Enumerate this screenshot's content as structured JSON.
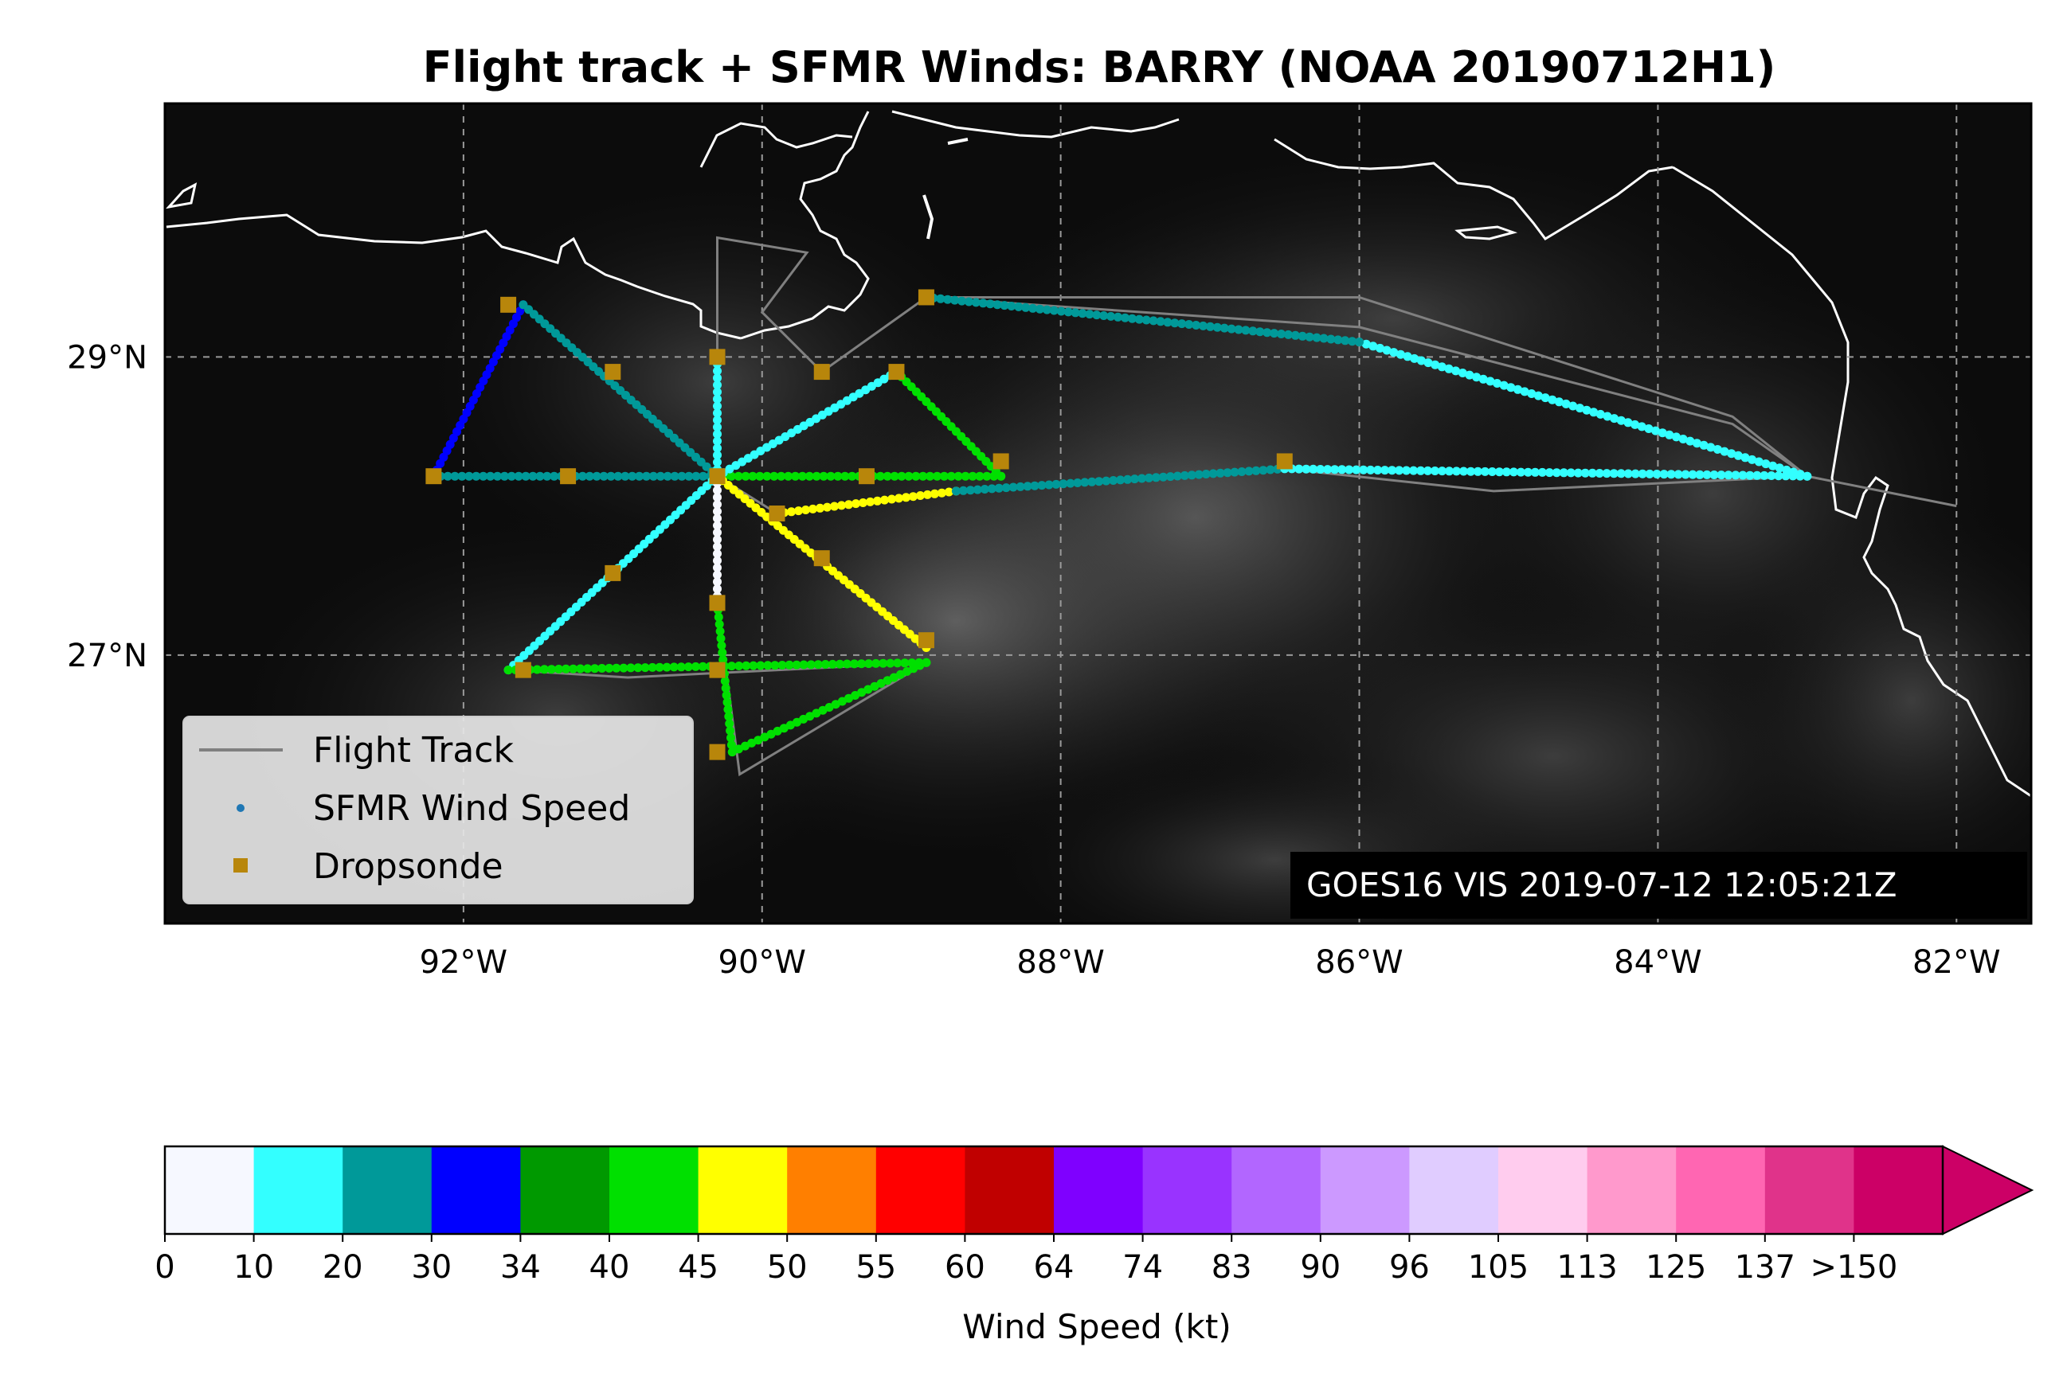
{
  "title": "Flight track + SFMR Winds: BARRY (NOAA 20190712H1)",
  "map": {
    "lon_range": [
      -94,
      -81.5
    ],
    "lat_range": [
      25.2,
      30.7
    ],
    "x_ticks": [
      {
        "lon": -92,
        "label": "92°W"
      },
      {
        "lon": -90,
        "label": "90°W"
      },
      {
        "lon": -88,
        "label": "88°W"
      },
      {
        "lon": -86,
        "label": "86°W"
      },
      {
        "lon": -84,
        "label": "84°W"
      },
      {
        "lon": -82,
        "label": "82°W"
      }
    ],
    "y_ticks": [
      {
        "lat": 29,
        "label": "29°N"
      },
      {
        "lat": 27,
        "label": "27°N"
      }
    ],
    "gridlines": true,
    "background": "GOES16 visible satellite imagery (grayscale)",
    "stamp": "GOES16 VIS 2019-07-12 12:05:21Z"
  },
  "legend": {
    "placement": "lower-left",
    "items": [
      {
        "label": "Flight Track",
        "marker": "line",
        "color": "#808080"
      },
      {
        "label": "SFMR Wind Speed",
        "marker": "dot",
        "color": "#1f77b4"
      },
      {
        "label": "Dropsonde",
        "marker": "square",
        "color": "#b8860b"
      }
    ]
  },
  "colorbar": {
    "label": "Wind Speed (kt)",
    "ticks": [
      "0",
      "10",
      "20",
      "30",
      "34",
      "40",
      "45",
      "50",
      "55",
      "60",
      "64",
      "74",
      "83",
      "90",
      "96",
      "105",
      "113",
      "125",
      "137",
      ">150"
    ],
    "colors": [
      "#f6f8ff",
      "#33ffff",
      "#009999",
      "#0000ff",
      "#009900",
      "#00e000",
      "#ffff00",
      "#ff7f00",
      "#ff0000",
      "#c00000",
      "#7f00ff",
      "#9933ff",
      "#b266ff",
      "#cc99ff",
      "#e0ccff",
      "#ffccee",
      "#ff99cc",
      "#ff66b2",
      "#e0338a",
      "#cc0066"
    ],
    "extend": "max"
  },
  "chart_data": {
    "type": "map-track",
    "flight_track": [
      [
        -82.0,
        28.0
      ],
      [
        -83.0,
        28.2
      ],
      [
        -83.5,
        28.6
      ],
      [
        -86.0,
        29.4
      ],
      [
        -88.9,
        29.4
      ],
      [
        -89.6,
        28.9
      ],
      [
        -90.0,
        29.3
      ],
      [
        -89.7,
        29.7
      ],
      [
        -90.3,
        29.8
      ],
      [
        -90.3,
        28.2
      ],
      [
        -91.6,
        29.35
      ],
      [
        -92.2,
        28.2
      ],
      [
        -88.4,
        28.2
      ],
      [
        -89.1,
        28.9
      ],
      [
        -90.3,
        28.2
      ],
      [
        -88.9,
        27.05
      ],
      [
        -90.3,
        28.2
      ],
      [
        -91.7,
        26.9
      ],
      [
        -90.9,
        26.85
      ],
      [
        -88.9,
        26.95
      ],
      [
        -90.15,
        26.2
      ],
      [
        -90.3,
        27.35
      ],
      [
        -90.3,
        28.2
      ],
      [
        -89.9,
        27.95
      ],
      [
        -88.7,
        28.1
      ],
      [
        -86.5,
        28.25
      ],
      [
        -85.1,
        28.1
      ],
      [
        -83.0,
        28.2
      ],
      [
        -83.5,
        28.55
      ],
      [
        -86.0,
        29.2
      ],
      [
        -88.9,
        29.4
      ]
    ],
    "sfmr_segments": [
      {
        "from": [
          -91.6,
          29.35
        ],
        "to": [
          -92.2,
          28.2
        ],
        "wind_kt": 30
      },
      {
        "from": [
          -92.2,
          28.2
        ],
        "to": [
          -90.3,
          28.2
        ],
        "wind_kt": 22
      },
      {
        "from": [
          -90.3,
          28.2
        ],
        "to": [
          -88.4,
          28.2
        ],
        "wind_kt": 40
      },
      {
        "from": [
          -88.4,
          28.2
        ],
        "to": [
          -89.1,
          28.9
        ],
        "wind_kt": 42
      },
      {
        "from": [
          -89.1,
          28.9
        ],
        "to": [
          -90.3,
          28.2
        ],
        "wind_kt": 12
      },
      {
        "from": [
          -91.6,
          29.35
        ],
        "to": [
          -90.3,
          28.2
        ],
        "wind_kt": 20
      },
      {
        "from": [
          -90.3,
          29.0
        ],
        "to": [
          -90.3,
          28.2
        ],
        "wind_kt": 12
      },
      {
        "from": [
          -90.3,
          28.2
        ],
        "to": [
          -91.7,
          26.9
        ],
        "wind_kt": 18
      },
      {
        "from": [
          -91.7,
          26.9
        ],
        "to": [
          -88.9,
          26.95
        ],
        "wind_kt": 40
      },
      {
        "from": [
          -90.3,
          28.2
        ],
        "to": [
          -90.3,
          27.35
        ],
        "wind_kt": 8
      },
      {
        "from": [
          -90.3,
          27.35
        ],
        "to": [
          -90.2,
          26.35
        ],
        "wind_kt": 42
      },
      {
        "from": [
          -90.2,
          26.35
        ],
        "to": [
          -88.9,
          26.95
        ],
        "wind_kt": 40
      },
      {
        "from": [
          -90.3,
          28.2
        ],
        "to": [
          -88.9,
          27.05
        ],
        "wind_kt": 46
      },
      {
        "from": [
          -89.9,
          27.95
        ],
        "to": [
          -88.7,
          28.1
        ],
        "wind_kt": 47
      },
      {
        "from": [
          -88.7,
          28.1
        ],
        "to": [
          -86.5,
          28.25
        ],
        "wind_kt": 25
      },
      {
        "from": [
          -86.5,
          28.25
        ],
        "to": [
          -83.0,
          28.2
        ],
        "wind_kt": 15
      },
      {
        "from": [
          -83.0,
          28.2
        ],
        "to": [
          -86.0,
          29.1
        ],
        "wind_kt": 12
      },
      {
        "from": [
          -86.0,
          29.1
        ],
        "to": [
          -88.9,
          29.4
        ],
        "wind_kt": 28
      }
    ],
    "dropsondes": [
      [
        -91.7,
        29.35
      ],
      [
        -92.2,
        28.2
      ],
      [
        -91.3,
        28.2
      ],
      [
        -90.3,
        28.2
      ],
      [
        -89.3,
        28.2
      ],
      [
        -91.0,
        28.9
      ],
      [
        -90.3,
        29.0
      ],
      [
        -89.6,
        28.9
      ],
      [
        -89.1,
        28.9
      ],
      [
        -88.9,
        29.4
      ],
      [
        -88.4,
        28.3
      ],
      [
        -86.5,
        28.3
      ],
      [
        -89.9,
        27.95
      ],
      [
        -89.6,
        27.65
      ],
      [
        -91.0,
        27.55
      ],
      [
        -90.3,
        27.35
      ],
      [
        -91.6,
        26.9
      ],
      [
        -90.3,
        26.9
      ],
      [
        -90.3,
        26.35
      ],
      [
        -88.9,
        27.1
      ]
    ]
  }
}
